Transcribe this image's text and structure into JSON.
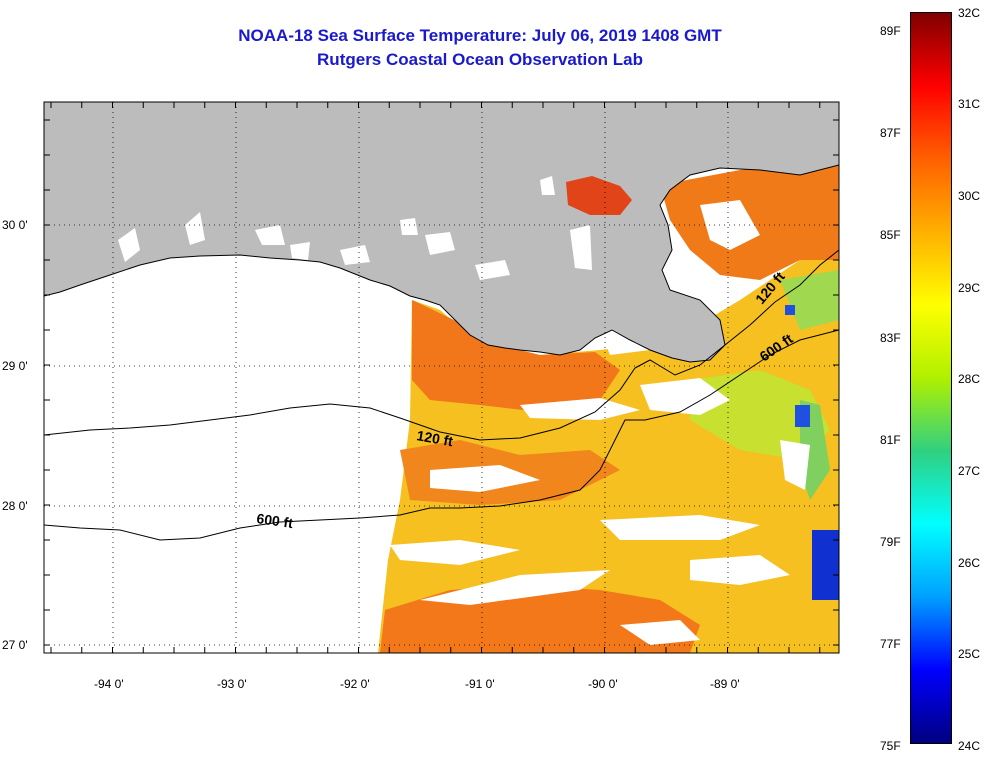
{
  "header": {
    "title": "NOAA-18 Sea Surface Temperature:  July 06, 2019 1408 GMT",
    "subtitle": "Rutgers Coastal Ocean Observation Lab"
  },
  "map": {
    "lat_labels": [
      "30 0'",
      "29 0'",
      "28 0'",
      "27 0'"
    ],
    "lon_labels": [
      "-94 0'",
      "-93 0'",
      "-92 0'",
      "-91 0'",
      "-90 0'",
      "-89 0'"
    ],
    "lat_range": [
      26.95,
      30.85
    ],
    "lon_range": [
      -94.55,
      -88.05
    ],
    "contour_labels": {
      "c120_west": "120 ft",
      "c120_east": "120 ft",
      "c600_west": "600 ft",
      "c600_east": "600 ft"
    },
    "colors": {
      "land": "#bcbcbc",
      "no_data": "#ffffff",
      "warm": "#f06a14",
      "mid": "#f7b81c",
      "cool": "#e8e820"
    }
  },
  "colorbar": {
    "fahrenheit_labels": [
      "89F",
      "87F",
      "85F",
      "83F",
      "81F",
      "79F",
      "77F",
      "75F"
    ],
    "celsius_labels": [
      "32C",
      "31C",
      "30C",
      "29C",
      "28C",
      "27C",
      "26C",
      "25C",
      "24C"
    ],
    "range_c": [
      24,
      32
    ],
    "range_f": [
      75,
      89.6
    ],
    "stops": [
      "#000080",
      "#0000ff",
      "#00a0ff",
      "#00ffff",
      "#30d080",
      "#b0f000",
      "#ffff00",
      "#ffb000",
      "#ff6000",
      "#ff0000",
      "#800000"
    ]
  }
}
